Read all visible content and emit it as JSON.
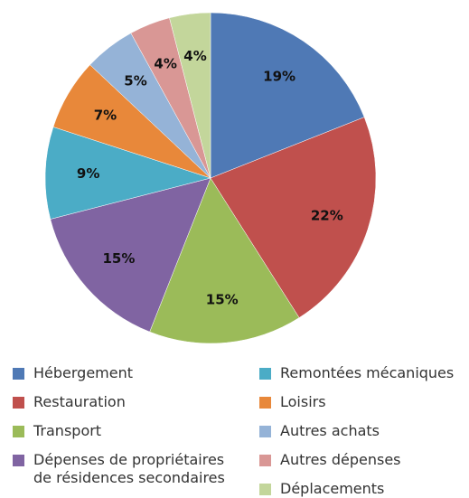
{
  "chart_data": {
    "type": "pie",
    "categories": [
      "Hébergement",
      "Restauration",
      "Transport",
      "Dépenses de propriétaires de résidences secondaires",
      "Remontées mécaniques",
      "Loisirs",
      "Autres achats",
      "Autres dépenses",
      "Déplacements"
    ],
    "values": [
      19,
      22,
      15,
      15,
      9,
      7,
      5,
      4,
      4
    ],
    "value_labels": [
      "19%",
      "22%",
      "15%",
      "15%",
      "9%",
      "7%",
      "5%",
      "4%",
      "4%"
    ],
    "colors": [
      "#4f79b5",
      "#c0504d",
      "#9bbb59",
      "#8064a2",
      "#4bacc6",
      "#e8883a",
      "#95b3d7",
      "#d99795",
      "#c3d69b"
    ]
  }
}
